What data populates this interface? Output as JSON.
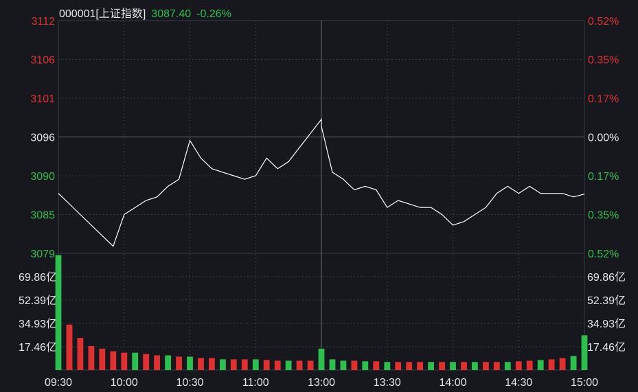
{
  "header": {
    "code_name": "000001[上证指数]",
    "price": "3087.40",
    "change": "-0.26%"
  },
  "colors": {
    "background": "#17181d",
    "up": "#e03131",
    "down": "#2fbf4f",
    "neutral": "#e6e6e6",
    "line": "#ffffff",
    "grid": "#3a3d45"
  },
  "chart_data": [
    {
      "type": "line",
      "title": "000001[上证指数]",
      "x_ticks": [
        "09:30",
        "10:00",
        "10:30",
        "11:00",
        "13:00",
        "13:30",
        "14:00",
        "14:30",
        "15:00"
      ],
      "y_ticks": [
        "3112",
        "3106",
        "3101",
        "3096",
        "3090",
        "3085",
        "3079"
      ],
      "y_ticks_right": [
        "0.52%",
        "0.35%",
        "0.17%",
        "0.00%",
        "0.17%",
        "0.35%",
        "0.52%"
      ],
      "ylim": [
        3079,
        3112
      ],
      "reference_value": 3096,
      "series": [
        {
          "x": [
            "09:30",
            "09:35",
            "09:40",
            "09:45",
            "09:50",
            "09:55",
            "10:00",
            "10:05",
            "10:10",
            "10:15",
            "10:20",
            "10:25",
            "10:30",
            "10:35",
            "10:40",
            "10:45",
            "10:50",
            "10:55",
            "11:00",
            "11:05",
            "11:10",
            "11:15",
            "11:20",
            "11:25",
            "11:30",
            "13:00",
            "13:05",
            "13:10",
            "13:15",
            "13:20",
            "13:25",
            "13:30",
            "13:35",
            "13:40",
            "13:45",
            "13:50",
            "13:55",
            "14:00",
            "14:05",
            "14:10",
            "14:15",
            "14:20",
            "14:25",
            "14:30",
            "14:35",
            "14:40",
            "14:45",
            "14:50",
            "14:55",
            "15:00"
          ],
          "y": [
            3087.5,
            3086.0,
            3084.5,
            3083.0,
            3081.5,
            3080.0,
            3084.5,
            3085.5,
            3086.5,
            3087.0,
            3088.5,
            3089.5,
            3095.0,
            3092.5,
            3091.0,
            3090.5,
            3090.0,
            3089.5,
            3090.0,
            3092.5,
            3091.0,
            3092.0,
            3094.0,
            3096.0,
            3098.0,
            3097.0,
            3090.5,
            3089.5,
            3088.0,
            3088.5,
            3088.0,
            3085.5,
            3086.5,
            3086.0,
            3085.5,
            3085.5,
            3084.5,
            3083.0,
            3083.5,
            3084.5,
            3085.5,
            3087.5,
            3088.5,
            3087.5,
            3088.5,
            3087.5,
            3087.5,
            3087.5,
            3087.0,
            3087.4
          ]
        }
      ]
    },
    {
      "type": "bar",
      "title": "",
      "y_ticks": [
        "69.86亿",
        "52.39亿",
        "34.93亿",
        "17.46亿"
      ],
      "ylim": [
        0,
        87.33
      ],
      "categories": [
        "09:30",
        "09:35",
        "09:40",
        "09:45",
        "09:50",
        "09:55",
        "10:00",
        "10:05",
        "10:10",
        "10:15",
        "10:20",
        "10:25",
        "10:30",
        "10:35",
        "10:40",
        "10:45",
        "10:50",
        "10:55",
        "11:00",
        "11:05",
        "11:10",
        "11:15",
        "11:20",
        "11:25",
        "11:30",
        "13:00",
        "13:05",
        "13:10",
        "13:15",
        "13:20",
        "13:25",
        "13:30",
        "13:35",
        "13:40",
        "13:45",
        "13:50",
        "13:55",
        "14:00",
        "14:05",
        "14:10",
        "14:15",
        "14:20",
        "14:25",
        "14:30",
        "14:35",
        "14:40",
        "14:45",
        "14:50",
        "14:55",
        "15:00"
      ],
      "values": [
        86.0,
        34.0,
        24.0,
        18.0,
        16.0,
        14.0,
        13.0,
        13.0,
        12.0,
        11.0,
        11.0,
        10.0,
        10.0,
        9.0,
        9.0,
        8.0,
        8.0,
        8.0,
        8.0,
        7.5,
        7.0,
        7.0,
        7.0,
        7.0,
        7.0,
        16.0,
        8.0,
        7.0,
        7.0,
        6.5,
        6.5,
        6.0,
        6.0,
        6.0,
        6.0,
        6.0,
        6.0,
        6.0,
        6.0,
        6.0,
        6.0,
        6.0,
        6.0,
        6.5,
        7.0,
        7.5,
        8.0,
        9.0,
        10.5,
        26.0
      ],
      "direction": [
        "down",
        "up",
        "up",
        "up",
        "up",
        "up",
        "up",
        "down",
        "up",
        "up",
        "down",
        "up",
        "down",
        "up",
        "up",
        "down",
        "up",
        "up",
        "down",
        "up",
        "up",
        "down",
        "up",
        "up",
        "up",
        "down",
        "down",
        "down",
        "up",
        "down",
        "up",
        "down",
        "up",
        "up",
        "up",
        "down",
        "up",
        "down",
        "up",
        "down",
        "up",
        "up",
        "down",
        "up",
        "up",
        "down",
        "up",
        "up",
        "down",
        "down"
      ]
    }
  ]
}
